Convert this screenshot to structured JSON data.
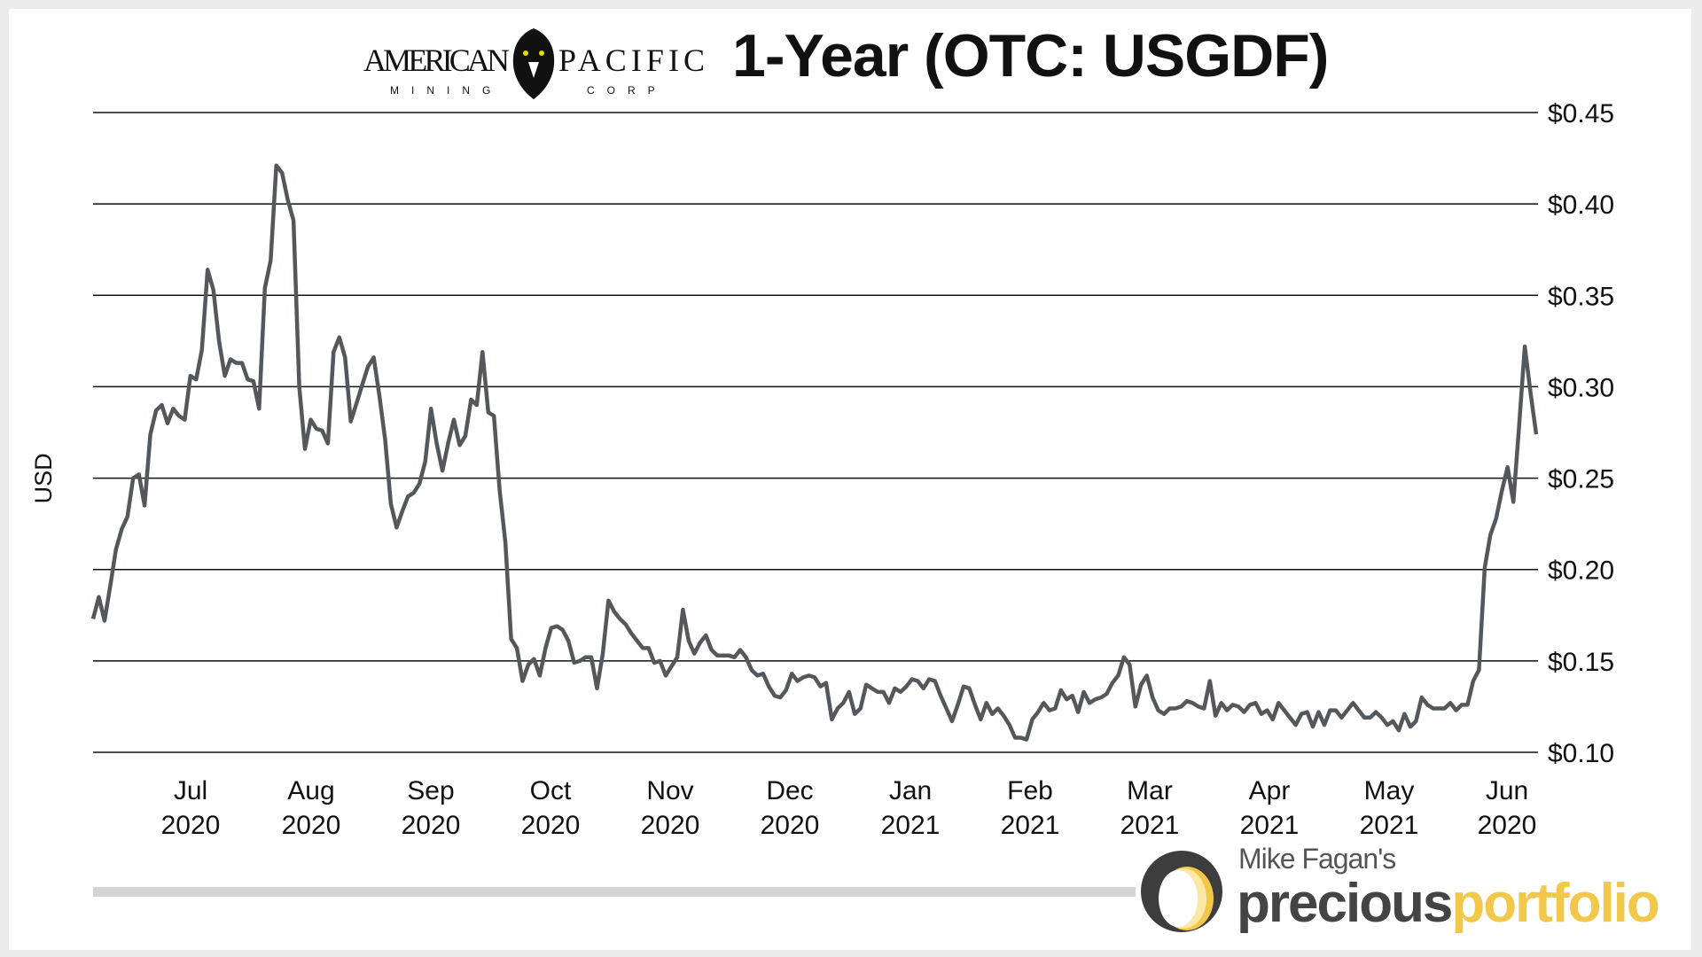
{
  "header": {
    "company_logo_text": "AMERICAN PACIFIC",
    "company_logo_subtext": "MINING CORP",
    "title": "1-Year (OTC: USGDF)"
  },
  "footer": {
    "brand_top": "Mike Fagan's",
    "brand_main_a": "precious",
    "brand_main_b": "portfolio"
  },
  "colors": {
    "line": "#54585c",
    "grid": "#111111",
    "accent": "#f2c84b",
    "bar": "#d4d4d4"
  },
  "chart_data": {
    "type": "line",
    "title": "1-Year (OTC: USGDF)",
    "ylabel": "USD",
    "xlabel": "",
    "ylim": [
      0.1,
      0.45
    ],
    "yticks": [
      "$0.45",
      "$0.40",
      "$0.35",
      "$0.30",
      "$0.25",
      "$0.20",
      "$0.15",
      "$0.10"
    ],
    "ytick_values": [
      0.45,
      0.4,
      0.35,
      0.3,
      0.25,
      0.2,
      0.15,
      0.1
    ],
    "xticks": [
      [
        "Jul",
        "2020"
      ],
      [
        "Aug",
        "2020"
      ],
      [
        "Sep",
        "2020"
      ],
      [
        "Oct",
        "2020"
      ],
      [
        "Nov",
        "2020"
      ],
      [
        "Dec",
        "2020"
      ],
      [
        "Jan",
        "2021"
      ],
      [
        "Feb",
        "2021"
      ],
      [
        "Mar",
        "2021"
      ],
      [
        "Apr",
        "2021"
      ],
      [
        "May",
        "2021"
      ],
      [
        "Jun",
        "2020"
      ]
    ],
    "grid": "horizontal",
    "y_axis_side": "right",
    "values": [
      0.173,
      0.185,
      0.172,
      0.191,
      0.211,
      0.222,
      0.229,
      0.25,
      0.252,
      0.235,
      0.274,
      0.287,
      0.29,
      0.28,
      0.288,
      0.284,
      0.282,
      0.306,
      0.304,
      0.32,
      0.364,
      0.353,
      0.325,
      0.306,
      0.315,
      0.313,
      0.313,
      0.304,
      0.303,
      0.288,
      0.354,
      0.369,
      0.421,
      0.417,
      0.402,
      0.391,
      0.3,
      0.266,
      0.282,
      0.277,
      0.276,
      0.269,
      0.319,
      0.327,
      0.316,
      0.281,
      0.291,
      0.301,
      0.311,
      0.316,
      0.295,
      0.271,
      0.236,
      0.223,
      0.232,
      0.24,
      0.242,
      0.247,
      0.259,
      0.288,
      0.269,
      0.254,
      0.269,
      0.282,
      0.268,
      0.273,
      0.293,
      0.29,
      0.319,
      0.286,
      0.284,
      0.243,
      0.215,
      0.162,
      0.157,
      0.139,
      0.148,
      0.151,
      0.142,
      0.157,
      0.168,
      0.169,
      0.167,
      0.161,
      0.149,
      0.15,
      0.152,
      0.152,
      0.135,
      0.154,
      0.183,
      0.177,
      0.173,
      0.17,
      0.165,
      0.161,
      0.157,
      0.157,
      0.149,
      0.15,
      0.142,
      0.147,
      0.152,
      0.178,
      0.161,
      0.154,
      0.16,
      0.164,
      0.156,
      0.153,
      0.153,
      0.153,
      0.152,
      0.156,
      0.152,
      0.145,
      0.142,
      0.143,
      0.136,
      0.131,
      0.13,
      0.134,
      0.143,
      0.139,
      0.141,
      0.142,
      0.141,
      0.136,
      0.138,
      0.118,
      0.124,
      0.127,
      0.133,
      0.121,
      0.124,
      0.137,
      0.135,
      0.133,
      0.133,
      0.127,
      0.135,
      0.133,
      0.136,
      0.14,
      0.139,
      0.135,
      0.14,
      0.139,
      0.131,
      0.124,
      0.117,
      0.126,
      0.136,
      0.135,
      0.126,
      0.118,
      0.127,
      0.121,
      0.124,
      0.12,
      0.115,
      0.108,
      0.108,
      0.107,
      0.118,
      0.122,
      0.127,
      0.123,
      0.124,
      0.134,
      0.129,
      0.131,
      0.122,
      0.133,
      0.127,
      0.129,
      0.13,
      0.132,
      0.138,
      0.142,
      0.152,
      0.148,
      0.125,
      0.137,
      0.142,
      0.13,
      0.123,
      0.121,
      0.124,
      0.124,
      0.125,
      0.128,
      0.127,
      0.125,
      0.124,
      0.139,
      0.12,
      0.127,
      0.123,
      0.126,
      0.125,
      0.122,
      0.126,
      0.127,
      0.121,
      0.123,
      0.118,
      0.127,
      0.123,
      0.119,
      0.115,
      0.121,
      0.122,
      0.114,
      0.122,
      0.115,
      0.123,
      0.123,
      0.119,
      0.123,
      0.127,
      0.123,
      0.119,
      0.119,
      0.122,
      0.119,
      0.115,
      0.117,
      0.112,
      0.121,
      0.114,
      0.117,
      0.13,
      0.126,
      0.124,
      0.124,
      0.124,
      0.127,
      0.123,
      0.126,
      0.126,
      0.139,
      0.145,
      0.201,
      0.219,
      0.228,
      0.243,
      0.256,
      0.237,
      0.278,
      0.322,
      0.297,
      0.274
    ]
  }
}
